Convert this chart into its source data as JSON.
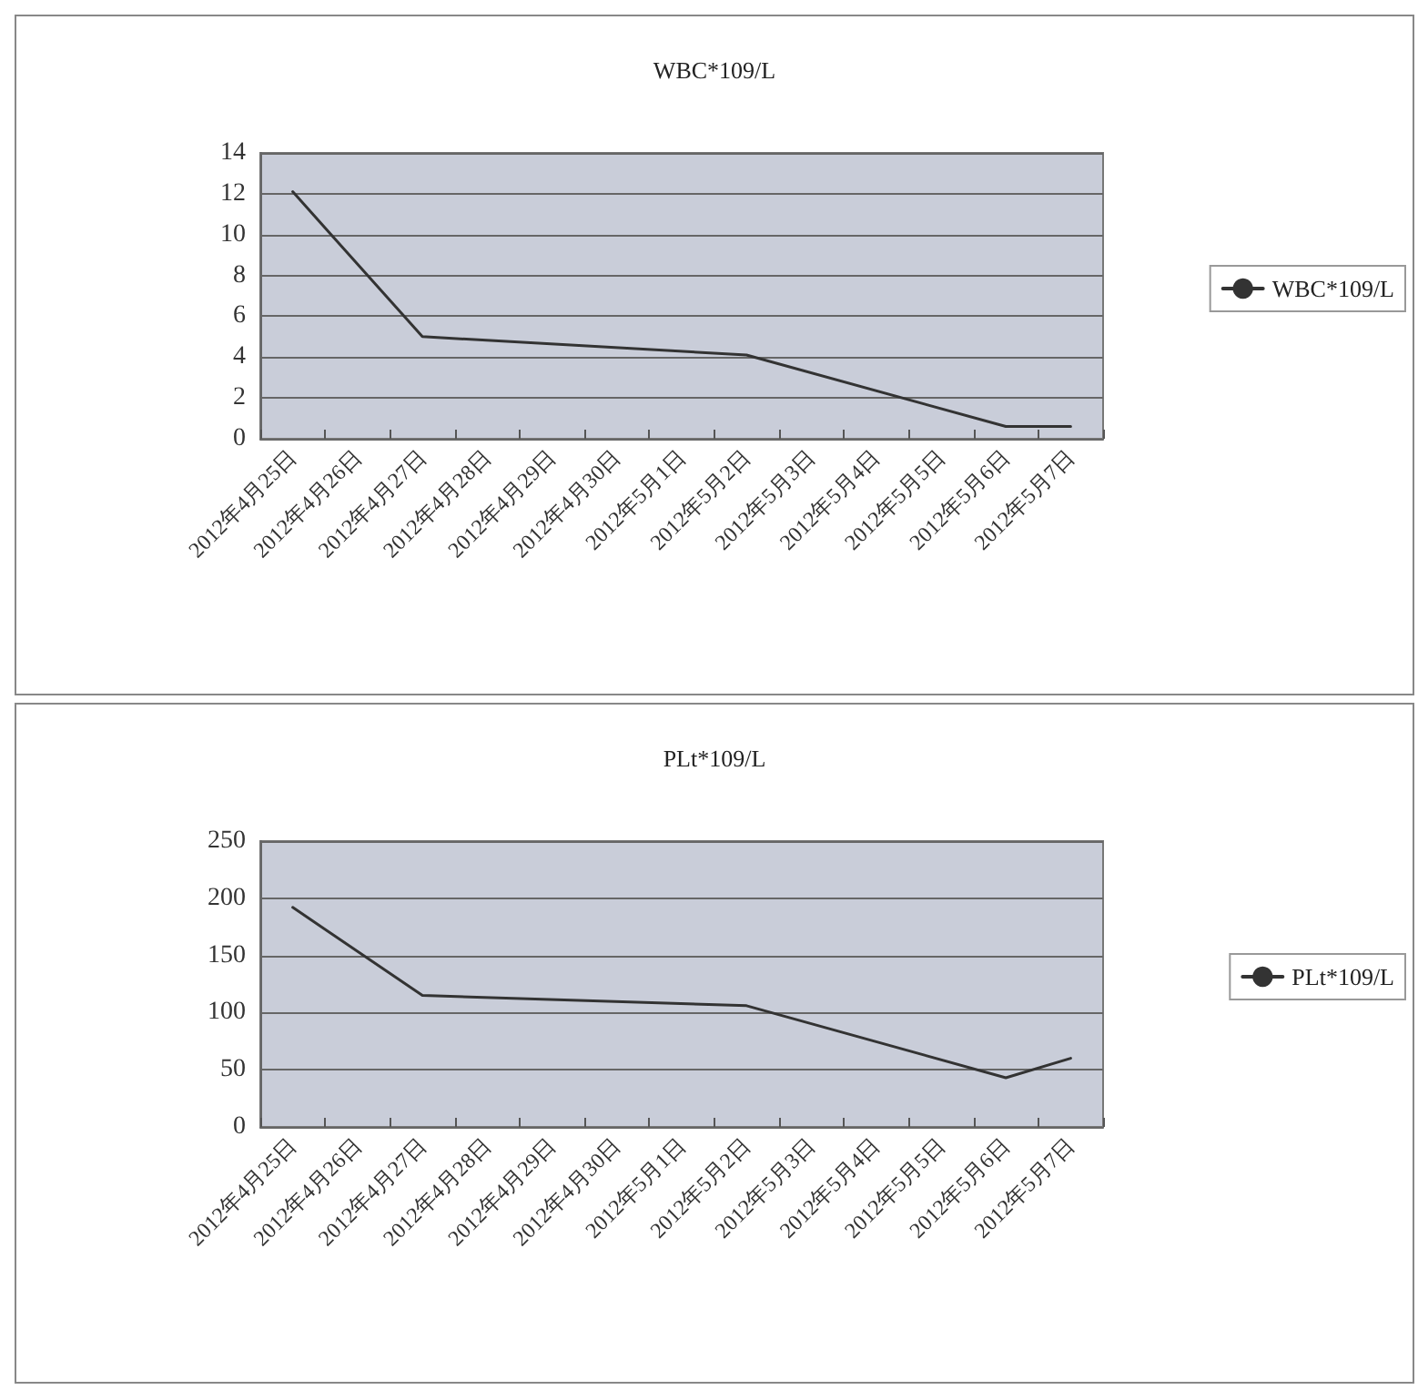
{
  "chart_data": [
    {
      "type": "line",
      "title": "WBC*109/L",
      "categories": [
        "2012年4月25日",
        "2012年4月26日",
        "2012年4月27日",
        "2012年4月28日",
        "2012年4月29日",
        "2012年4月30日",
        "2012年5月1日",
        "2012年5月2日",
        "2012年5月3日",
        "2012年5月4日",
        "2012年5月5日",
        "2012年5月6日",
        "2012年5月7日"
      ],
      "series": [
        {
          "name": "WBC*109/L",
          "color": "#333333",
          "values": [
            12.1,
            null,
            5.0,
            null,
            null,
            null,
            null,
            4.1,
            null,
            null,
            null,
            0.6,
            0.6
          ]
        }
      ],
      "ylim": [
        0,
        14
      ],
      "yticks": [
        0,
        2,
        4,
        6,
        8,
        10,
        12,
        14
      ],
      "grid": "y",
      "legend": "right",
      "marker": "none",
      "line_style": "solid"
    },
    {
      "type": "line",
      "title": "PLt*109/L",
      "categories": [
        "2012年4月25日",
        "2012年4月26日",
        "2012年4月27日",
        "2012年4月28日",
        "2012年4月29日",
        "2012年4月30日",
        "2012年5月1日",
        "2012年5月2日",
        "2012年5月3日",
        "2012年5月4日",
        "2012年5月5日",
        "2012年5月6日",
        "2012年5月7日"
      ],
      "series": [
        {
          "name": "PLt*109/L",
          "color": "#333333",
          "values": [
            192,
            null,
            115,
            null,
            null,
            null,
            null,
            106,
            null,
            null,
            null,
            43,
            60
          ]
        }
      ],
      "ylim": [
        0,
        250
      ],
      "yticks": [
        0,
        50,
        100,
        150,
        200,
        250
      ],
      "grid": "y",
      "legend": "right",
      "marker": "none",
      "line_style": "solid"
    }
  ]
}
